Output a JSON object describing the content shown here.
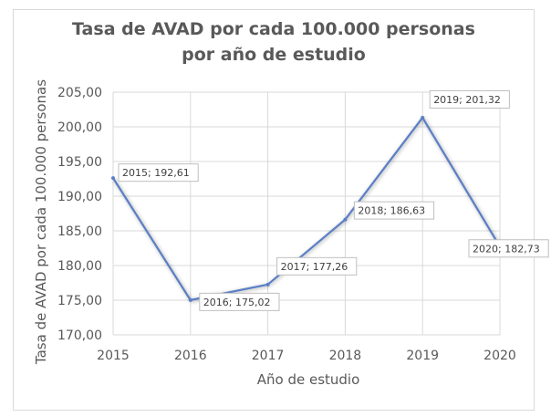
{
  "chart_data": {
    "type": "line",
    "title": "Tasa de AVAD por cada 100.000 personas\npor año de estudio",
    "xlabel": "Año de estudio",
    "ylabel": "Tasa de AVAD por cada 100.000 personas",
    "x": [
      2015,
      2016,
      2017,
      2018,
      2019,
      2020
    ],
    "xtick_labels": [
      "2015",
      "2016",
      "2017",
      "2018",
      "2019",
      "2020"
    ],
    "ytick_labels": [
      "170,00",
      "175,00",
      "180,00",
      "185,00",
      "190,00",
      "195,00",
      "200,00",
      "205,00"
    ],
    "ylim": [
      170,
      205
    ],
    "grid": true,
    "series": [
      {
        "values": [
          192.61,
          175.02,
          177.26,
          186.63,
          201.32,
          182.73
        ],
        "data_labels": [
          "2015; 192,61",
          "2016; 175,02",
          "2017; 177,26",
          "2018; 186,63",
          "2019; 201,32",
          "2020; 182,73"
        ],
        "color": "#5b7fc4"
      }
    ]
  }
}
